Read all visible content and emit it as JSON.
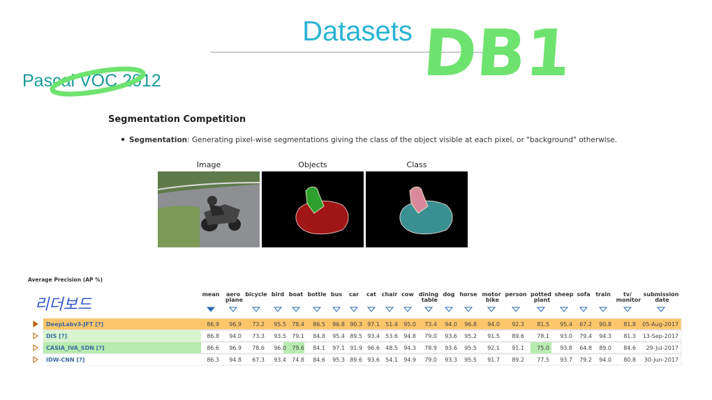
{
  "header": {
    "title": "Datasets",
    "handwriting": "DB1",
    "dataset": "Pascal VOC 2012"
  },
  "section": {
    "heading": "Segmentation Competition",
    "bullet_term": "Segmentation",
    "bullet_text": ": Generating pixel-wise segmentations giving the class of the object visible at each pixel, or \"background\" otherwise.",
    "image_labels": [
      "Image",
      "Objects",
      "Class"
    ]
  },
  "table": {
    "caption": "Average Precision (AP %)",
    "note": "리더보드",
    "columns": [
      "mean",
      "aero plane",
      "bicycle",
      "bird",
      "boat",
      "bottle",
      "bus",
      "car",
      "cat",
      "chair",
      "cow",
      "dining table",
      "dog",
      "horse",
      "motor bike",
      "person",
      "potted plant",
      "sheep",
      "sofa",
      "train",
      "tv/ monitor",
      "submission date"
    ],
    "rows": [
      [
        "DeepLabv3-JFT [?]",
        "86.9",
        "96.9",
        "73.2",
        "95.5",
        "78.4",
        "86.5",
        "96.8",
        "90.3",
        "97.1",
        "51.4",
        "95.0",
        "73.4",
        "94.0",
        "96.8",
        "94.0",
        "92.3",
        "81.5",
        "95.4",
        "67.2",
        "90.8",
        "81.8",
        "05-Aug-2017"
      ],
      [
        "DIS [?]",
        "86.8",
        "94.0",
        "73.3",
        "93.5",
        "79.1",
        "84.8",
        "95.4",
        "89.5",
        "93.4",
        "53.6",
        "94.8",
        "79.0",
        "93.6",
        "95.2",
        "91.5",
        "89.6",
        "78.1",
        "93.0",
        "79.4",
        "94.3",
        "81.3",
        "13-Sep-2017"
      ],
      [
        "CASIA_IVA_SDN [?]",
        "86.6",
        "96.9",
        "78.6",
        "96.0",
        "79.6",
        "84.1",
        "97.1",
        "91.9",
        "96.6",
        "48.5",
        "94.3",
        "78.9",
        "93.6",
        "95.5",
        "92.1",
        "91.1",
        "75.0",
        "93.8",
        "64.8",
        "89.0",
        "84.6",
        "29-Jul-2017"
      ],
      [
        "IDW-CNN [?]",
        "86.3",
        "94.8",
        "67.3",
        "93.4",
        "74.8",
        "84.6",
        "95.3",
        "89.6",
        "93.6",
        "54.1",
        "94.9",
        "79.0",
        "93.3",
        "95.5",
        "91.7",
        "89.2",
        "77.5",
        "93.7",
        "79.2",
        "94.0",
        "80.8",
        "30-Jun-2017"
      ]
    ]
  }
}
